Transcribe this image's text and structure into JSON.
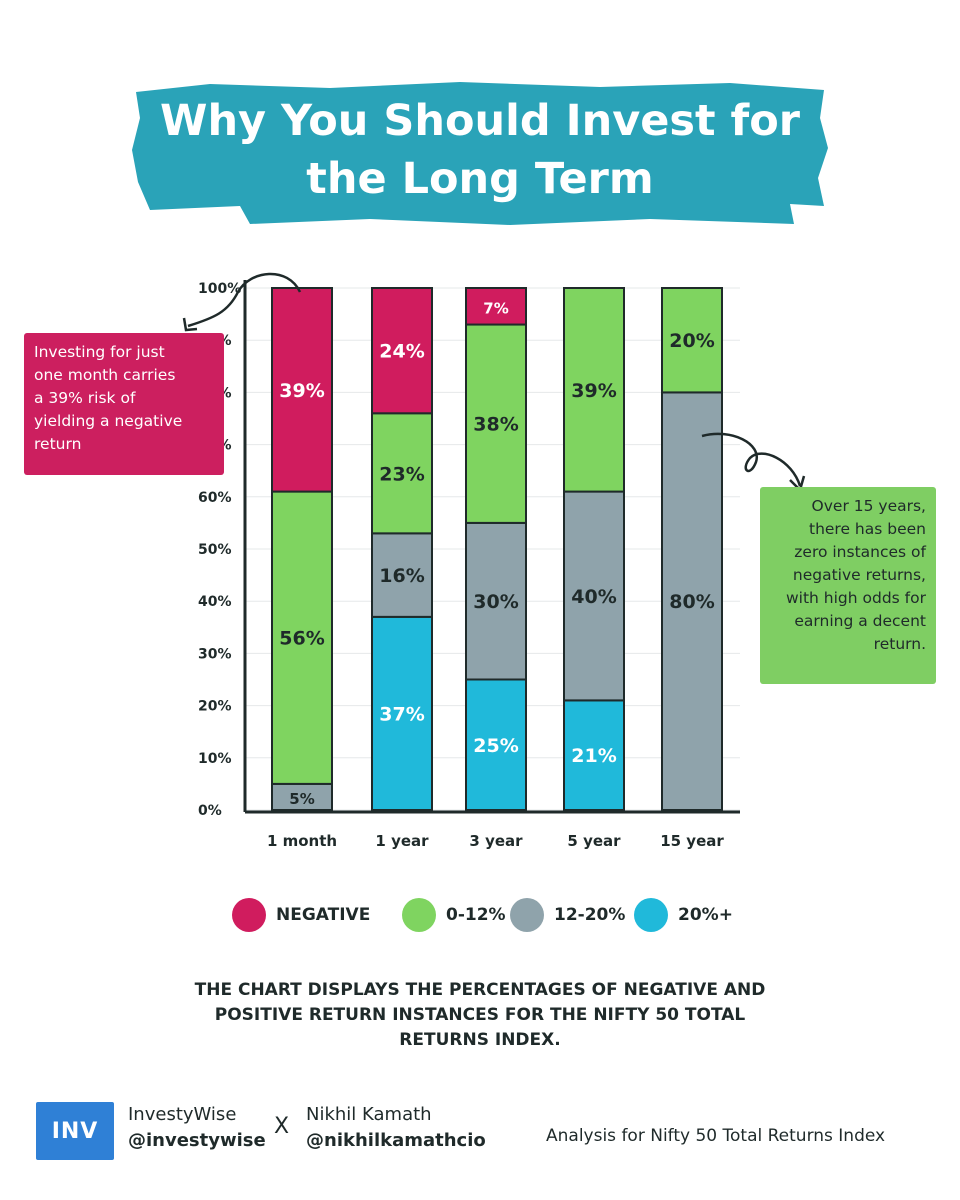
{
  "title": {
    "line1": "Why You Should Invest for",
    "line2": "the Long Term",
    "banner_color": "#2aa3b8"
  },
  "chart_data": {
    "type": "bar",
    "stacked": true,
    "categories": [
      "1 month",
      "1 year",
      "3 year",
      "5 year",
      "15 year"
    ],
    "series": [
      {
        "name": "20%+",
        "color": "#20b9da",
        "values": [
          0,
          37,
          25,
          21,
          0
        ]
      },
      {
        "name": "12-20%",
        "color": "#8fa3ab",
        "values": [
          5,
          16,
          30,
          40,
          80
        ]
      },
      {
        "name": "0-12%",
        "color": "#7fd460",
        "values": [
          56,
          23,
          38,
          39,
          20
        ]
      },
      {
        "name": "NEGATIVE",
        "color": "#d01c5e",
        "values": [
          39,
          24,
          7,
          0,
          0
        ]
      }
    ],
    "data_labels": [
      {
        "category": "1 month",
        "series": "12-20%",
        "text": "5%"
      },
      {
        "category": "1 month",
        "series": "0-12%",
        "text": "56%"
      },
      {
        "category": "1 month",
        "series": "NEGATIVE",
        "text": "39%"
      },
      {
        "category": "1 year",
        "series": "20%+",
        "text": "37%"
      },
      {
        "category": "1 year",
        "series": "12-20%",
        "text": "16%"
      },
      {
        "category": "1 year",
        "series": "0-12%",
        "text": "23%"
      },
      {
        "category": "1 year",
        "series": "NEGATIVE",
        "text": "24%"
      },
      {
        "category": "3 year",
        "series": "20%+",
        "text": "25%"
      },
      {
        "category": "3 year",
        "series": "12-20%",
        "text": "30%"
      },
      {
        "category": "3 year",
        "series": "0-12%",
        "text": "38%"
      },
      {
        "category": "3 year",
        "series": "NEGATIVE",
        "text": "7%"
      },
      {
        "category": "5 year",
        "series": "20%+",
        "text": "21%"
      },
      {
        "category": "5 year",
        "series": "12-20%",
        "text": "40%"
      },
      {
        "category": "5 year",
        "series": "0-12%",
        "text": "39%"
      },
      {
        "category": "15 year",
        "series": "12-20%",
        "text": "80%"
      },
      {
        "category": "15 year",
        "series": "0-12%",
        "text": "20%"
      }
    ],
    "yticks": [
      "0%",
      "10%",
      "20%",
      "30%",
      "40%",
      "50%",
      "60%",
      "70%",
      "80%",
      "90%",
      "100%"
    ],
    "ylim": [
      0,
      100
    ],
    "grid": true,
    "legend_position": "bottom"
  },
  "callouts": {
    "left": [
      "Investing for just",
      "one month carries",
      "a 39% risk of",
      "yielding a negative",
      "return"
    ],
    "right": [
      "Over 15 years,",
      "there has been",
      "zero instances of",
      "negative returns,",
      "with high odds for",
      "earning a decent",
      "return."
    ]
  },
  "legend": [
    {
      "label": "NEGATIVE",
      "color": "#d01c5e"
    },
    {
      "label": "0-12%",
      "color": "#7fd460"
    },
    {
      "label": "12-20%",
      "color": "#8fa3ab"
    },
    {
      "label": "20%+",
      "color": "#20b9da"
    }
  ],
  "caption": {
    "line1": "THE CHART DISPLAYS THE PERCENTAGES OF NEGATIVE AND",
    "line2": "POSITIVE RETURN INSTANCES FOR THE NIFTY 50 TOTAL",
    "line3": "RETURNS INDEX."
  },
  "footer": {
    "logo_text": "INV",
    "brand_name": "InvestyWise",
    "brand_handle": "@investywise",
    "collab_mark": "X",
    "partner_name": "Nikhil Kamath",
    "partner_handle": "@nikhilkamathcio",
    "note": "Analysis for Nifty 50 Total Returns Index"
  }
}
